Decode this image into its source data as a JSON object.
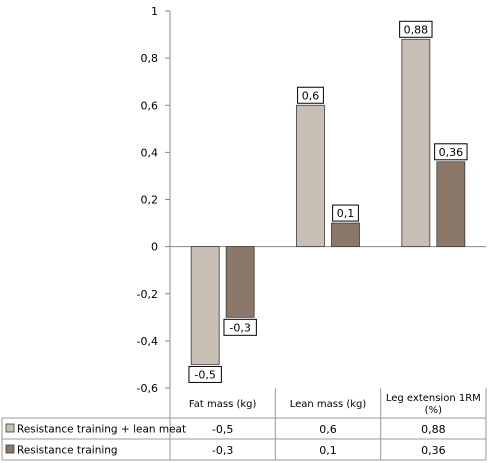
{
  "chart_data": {
    "type": "bar",
    "categories": [
      "Fat mass (kg)",
      "Lean mass (kg)",
      "Leg extension 1RM (%)"
    ],
    "series": [
      {
        "name": "Resistance training + lean meat",
        "values": [
          -0.5,
          0.6,
          0.88
        ],
        "labels": [
          "-0,5",
          "0,6",
          "0,88"
        ],
        "color": "#c8bfb5"
      },
      {
        "name": "Resistance training",
        "values": [
          -0.3,
          0.1,
          0.36
        ],
        "labels": [
          "-0,3",
          "0,1",
          "0,36"
        ],
        "color": "#8b7868"
      }
    ],
    "ylim": [
      -0.6,
      1
    ],
    "yticks": [
      -0.6,
      -0.4,
      -0.2,
      0,
      0.2,
      0.4,
      0.6,
      0.8,
      1
    ],
    "ytick_labels": [
      "-0,6",
      "-0,4",
      "-0,2",
      "0",
      "0,2",
      "0,4",
      "0,6",
      "0,8",
      "1"
    ],
    "grid": false,
    "legend": "data-table",
    "title": "",
    "xlabel": "",
    "ylabel": ""
  }
}
